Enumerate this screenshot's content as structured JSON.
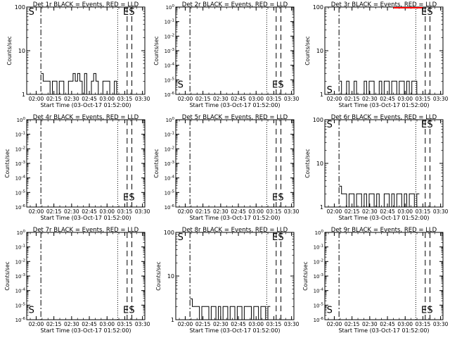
{
  "figure": {
    "rows": 3,
    "cols": 3,
    "tick_labels": [
      "02:00",
      "02:15",
      "02:30",
      "02:45",
      "03:00",
      "03:15",
      "03:30"
    ],
    "xlabel": "Start Time (03-Oct-17 01:52:00)",
    "ylabel": "Counts/sec",
    "colors": {
      "events": "#000000",
      "lld": "#ff0000",
      "axes": "#000000"
    }
  },
  "chart_data": [
    {
      "title": "Det 1r BLACK = Events, RED = LLD",
      "type": "line",
      "yscale": "log",
      "ylim": [
        1,
        100
      ],
      "ytick_labels": [
        {
          "v": 100,
          "t": "100"
        },
        {
          "v": 10,
          "t": "10"
        },
        {
          "v": 1,
          "t": "1"
        }
      ],
      "markers": [
        {
          "x": "02:04",
          "style": "dashdot"
        },
        {
          "x": "03:09",
          "style": "dotted"
        },
        {
          "x": "03:17",
          "style": "dashed"
        },
        {
          "x": "03:21",
          "style": "dashed"
        }
      ],
      "letters": [
        {
          "t": "S",
          "x": "01:56",
          "v": 80
        },
        {
          "t": "E",
          "x": "03:16",
          "v": 80
        },
        {
          "t": "S",
          "x": "03:21",
          "v": 80
        }
      ],
      "events": {
        "start": "02:04",
        "end": "03:12",
        "levels": [
          3,
          2,
          2,
          2,
          1,
          2,
          2,
          1,
          2,
          2,
          1,
          1,
          2,
          2,
          3,
          2,
          3,
          2,
          1,
          3,
          1,
          1,
          2,
          3,
          2,
          1,
          1,
          2,
          2,
          2,
          1,
          1,
          2,
          1,
          1
        ]
      }
    },
    {
      "title": "Det 2r BLACK = Events, RED = LLD",
      "type": "line",
      "yscale": "log",
      "ylim": [
        1e-06,
        1
      ],
      "ytick_labels": [
        {
          "v": 1,
          "t": "10^0"
        },
        {
          "v": 0.1,
          "t": "10^-1"
        },
        {
          "v": 0.01,
          "t": "10^-2"
        },
        {
          "v": 0.001,
          "t": "10^-3"
        },
        {
          "v": 0.0001,
          "t": "10^-4"
        },
        {
          "v": 1e-05,
          "t": "10^-5"
        },
        {
          "v": 1e-06,
          "t": "10^-6"
        }
      ],
      "markers": [
        {
          "x": "02:04",
          "style": "dashdot"
        },
        {
          "x": "03:09",
          "style": "dotted"
        },
        {
          "x": "03:17",
          "style": "dashed"
        },
        {
          "x": "03:21",
          "style": "dashed"
        }
      ],
      "letters": [
        {
          "t": "S",
          "x": "01:56",
          "v": 5e-06
        },
        {
          "t": "E",
          "x": "03:16",
          "v": 5e-06
        },
        {
          "t": "S",
          "x": "03:21",
          "v": 5e-06
        }
      ],
      "events": null
    },
    {
      "title": "Det 3r BLACK = Events, RED = LLD",
      "type": "line",
      "yscale": "log",
      "ylim": [
        1,
        100
      ],
      "ytick_labels": [
        {
          "v": 100,
          "t": "100"
        },
        {
          "v": 10,
          "t": "10"
        },
        {
          "v": 1,
          "t": "1"
        }
      ],
      "markers": [
        {
          "x": "02:04",
          "style": "dashdot"
        },
        {
          "x": "03:09",
          "style": "dotted"
        },
        {
          "x": "03:17",
          "style": "dashed"
        },
        {
          "x": "03:21",
          "style": "dashed"
        }
      ],
      "letters": [
        {
          "t": "S",
          "x": "01:56",
          "v": 1.3
        },
        {
          "t": "E",
          "x": "03:16",
          "v": 80
        },
        {
          "t": "S",
          "x": "03:21",
          "v": 80
        }
      ],
      "events": {
        "start": "02:04",
        "end": "03:12",
        "levels": [
          2,
          1,
          1,
          2,
          1,
          1,
          2,
          1,
          1,
          1,
          2,
          1,
          2,
          2,
          1,
          1,
          2,
          1,
          2,
          2,
          1,
          2,
          2,
          1,
          2,
          2,
          1,
          2,
          1,
          2,
          2,
          1
        ]
      },
      "lld": {
        "start": "02:50",
        "end": "03:15",
        "value": 100
      }
    },
    {
      "title": "Det 4r BLACK = Events, RED = LLD",
      "type": "line",
      "yscale": "log",
      "ylim": [
        1e-06,
        1
      ],
      "ytick_labels": [
        {
          "v": 1,
          "t": "10^0"
        },
        {
          "v": 0.1,
          "t": "10^-1"
        },
        {
          "v": 0.01,
          "t": "10^-2"
        },
        {
          "v": 0.001,
          "t": "10^-3"
        },
        {
          "v": 0.0001,
          "t": "10^-4"
        },
        {
          "v": 1e-05,
          "t": "10^-5"
        },
        {
          "v": 1e-06,
          "t": "10^-6"
        }
      ],
      "markers": [
        {
          "x": "02:04",
          "style": "dashdot"
        },
        {
          "x": "03:09",
          "style": "dotted"
        },
        {
          "x": "03:17",
          "style": "dashed"
        },
        {
          "x": "03:21",
          "style": "dashed"
        }
      ],
      "letters": [
        {
          "t": "E",
          "x": "03:16",
          "v": 5e-06
        },
        {
          "t": "S",
          "x": "03:21",
          "v": 5e-06
        }
      ],
      "events": null
    },
    {
      "title": "Det 5r BLACK = Events, RED = LLD",
      "type": "line",
      "yscale": "log",
      "ylim": [
        1e-06,
        1
      ],
      "ytick_labels": [
        {
          "v": 1,
          "t": "10^0"
        },
        {
          "v": 0.1,
          "t": "10^-1"
        },
        {
          "v": 0.01,
          "t": "10^-2"
        },
        {
          "v": 0.001,
          "t": "10^-3"
        },
        {
          "v": 0.0001,
          "t": "10^-4"
        },
        {
          "v": 1e-05,
          "t": "10^-5"
        },
        {
          "v": 1e-06,
          "t": "10^-6"
        }
      ],
      "markers": [
        {
          "x": "02:04",
          "style": "dashdot"
        },
        {
          "x": "03:09",
          "style": "dotted"
        },
        {
          "x": "03:17",
          "style": "dashed"
        },
        {
          "x": "03:21",
          "style": "dashed"
        }
      ],
      "letters": [
        {
          "t": "E",
          "x": "03:16",
          "v": 5e-06
        },
        {
          "t": "S",
          "x": "03:21",
          "v": 5e-06
        }
      ],
      "events": null
    },
    {
      "title": "Det 6r BLACK = Events, RED = LLD",
      "type": "line",
      "yscale": "log",
      "ylim": [
        1,
        100
      ],
      "ytick_labels": [
        {
          "v": 100,
          "t": "100"
        },
        {
          "v": 10,
          "t": "10"
        },
        {
          "v": 1,
          "t": "1"
        }
      ],
      "markers": [
        {
          "x": "02:04",
          "style": "dashdot"
        },
        {
          "x": "03:09",
          "style": "dotted"
        },
        {
          "x": "03:17",
          "style": "dashed"
        },
        {
          "x": "03:21",
          "style": "dashed"
        }
      ],
      "letters": [
        {
          "t": "S",
          "x": "01:56",
          "v": 80
        },
        {
          "t": "E",
          "x": "03:16",
          "v": 80
        },
        {
          "t": "S",
          "x": "03:21",
          "v": 80
        }
      ],
      "events": {
        "start": "02:04",
        "end": "03:12",
        "levels": [
          3,
          2,
          2,
          1,
          2,
          2,
          1,
          2,
          2,
          1,
          2,
          1,
          2,
          2,
          1,
          2,
          1,
          1,
          2,
          2,
          1,
          2,
          1,
          2,
          2,
          1,
          2,
          1,
          2,
          2,
          1,
          2
        ]
      }
    },
    {
      "title": "Det 7r BLACK = Events, RED = LLD",
      "type": "line",
      "yscale": "log",
      "ylim": [
        1e-06,
        1
      ],
      "ytick_labels": [
        {
          "v": 1,
          "t": "10^0"
        },
        {
          "v": 0.1,
          "t": "10^-1"
        },
        {
          "v": 0.01,
          "t": "10^-2"
        },
        {
          "v": 0.001,
          "t": "10^-3"
        },
        {
          "v": 0.0001,
          "t": "10^-4"
        },
        {
          "v": 1e-05,
          "t": "10^-5"
        },
        {
          "v": 1e-06,
          "t": "10^-6"
        }
      ],
      "markers": [
        {
          "x": "02:04",
          "style": "dashdot"
        },
        {
          "x": "03:09",
          "style": "dotted"
        },
        {
          "x": "03:17",
          "style": "dashed"
        },
        {
          "x": "03:21",
          "style": "dashed"
        }
      ],
      "letters": [
        {
          "t": "S",
          "x": "01:56",
          "v": 5e-06
        },
        {
          "t": "E",
          "x": "03:16",
          "v": 5e-06
        },
        {
          "t": "S",
          "x": "03:21",
          "v": 5e-06
        }
      ],
      "events": null
    },
    {
      "title": "Det 8r BLACK = Events, RED = LLD",
      "type": "line",
      "yscale": "log",
      "ylim": [
        1,
        100
      ],
      "ytick_labels": [
        {
          "v": 100,
          "t": "100"
        },
        {
          "v": 10,
          "t": "10"
        },
        {
          "v": 1,
          "t": "1"
        }
      ],
      "markers": [
        {
          "x": "02:04",
          "style": "dashdot"
        },
        {
          "x": "03:09",
          "style": "dotted"
        },
        {
          "x": "03:17",
          "style": "dashed"
        },
        {
          "x": "03:21",
          "style": "dashed"
        }
      ],
      "letters": [
        {
          "t": "S",
          "x": "01:56",
          "v": 80
        },
        {
          "t": "E",
          "x": "03:16",
          "v": 80
        },
        {
          "t": "S",
          "x": "03:21",
          "v": 80
        }
      ],
      "events": {
        "start": "02:04",
        "end": "03:12",
        "levels": [
          3,
          2,
          2,
          2,
          1,
          2,
          2,
          2,
          1,
          2,
          2,
          1,
          2,
          1,
          2,
          2,
          1,
          2,
          2,
          1,
          2,
          2,
          1,
          2,
          2,
          2,
          1,
          2,
          2,
          1,
          2,
          2,
          1,
          2
        ]
      }
    },
    {
      "title": "Det 9r BLACK = Events, RED = LLD",
      "type": "line",
      "yscale": "log",
      "ylim": [
        1e-06,
        1
      ],
      "ytick_labels": [
        {
          "v": 1,
          "t": "10^0"
        },
        {
          "v": 0.1,
          "t": "10^-1"
        },
        {
          "v": 0.01,
          "t": "10^-2"
        },
        {
          "v": 0.001,
          "t": "10^-3"
        },
        {
          "v": 0.0001,
          "t": "10^-4"
        },
        {
          "v": 1e-05,
          "t": "10^-5"
        },
        {
          "v": 1e-06,
          "t": "10^-6"
        }
      ],
      "markers": [
        {
          "x": "02:04",
          "style": "dashdot"
        },
        {
          "x": "03:09",
          "style": "dotted"
        },
        {
          "x": "03:17",
          "style": "dashed"
        },
        {
          "x": "03:21",
          "style": "dashed"
        }
      ],
      "letters": [
        {
          "t": "S",
          "x": "01:56",
          "v": 5e-06
        },
        {
          "t": "E",
          "x": "03:16",
          "v": 5e-06
        },
        {
          "t": "S",
          "x": "03:21",
          "v": 5e-06
        }
      ],
      "events": null
    }
  ]
}
